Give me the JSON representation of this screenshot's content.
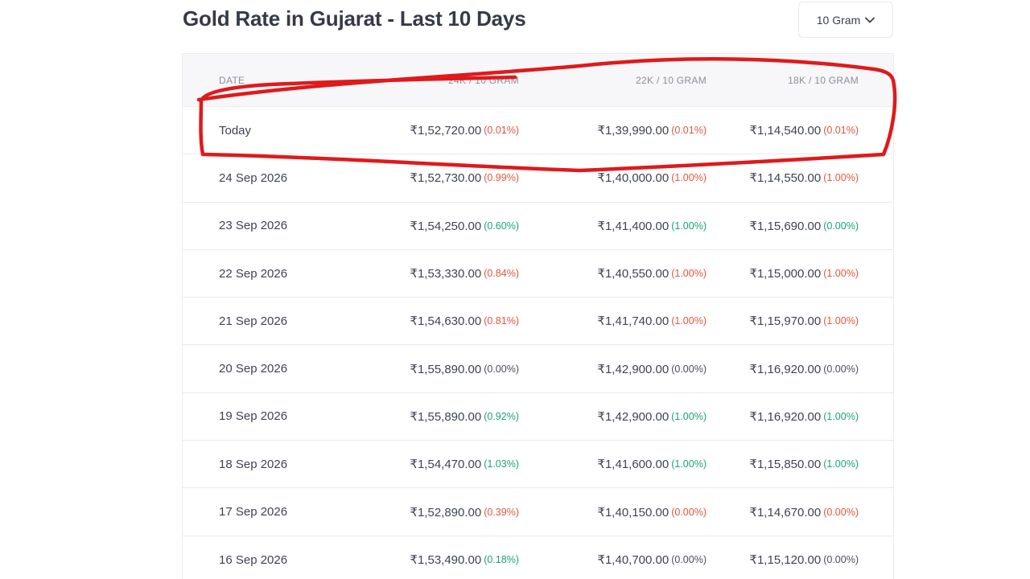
{
  "header": {
    "title": "Gold Rate in Gujarat - Last 10 Days",
    "unit_select": {
      "value": "10 Gram",
      "icon": "chevron-down-icon"
    }
  },
  "table": {
    "columns": [
      "DATE",
      "24K / 10 GRAM",
      "22K / 10 GRAM",
      "18K / 10 GRAM"
    ],
    "rows": [
      {
        "date": "Today",
        "k24": {
          "price": "₹1,52,720.00",
          "pct": "(0.01%)",
          "trend": "down"
        },
        "k22": {
          "price": "₹1,39,990.00",
          "pct": "(0.01%)",
          "trend": "down"
        },
        "k18": {
          "price": "₹1,14,540.00",
          "pct": "(0.01%)",
          "trend": "down"
        }
      },
      {
        "date": "24 Sep 2026",
        "k24": {
          "price": "₹1,52,730.00",
          "pct": "(0.99%)",
          "trend": "down"
        },
        "k22": {
          "price": "₹1,40,000.00",
          "pct": "(1.00%)",
          "trend": "down"
        },
        "k18": {
          "price": "₹1,14,550.00",
          "pct": "(1.00%)",
          "trend": "down"
        }
      },
      {
        "date": "23 Sep 2026",
        "k24": {
          "price": "₹1,54,250.00",
          "pct": "(0.60%)",
          "trend": "up"
        },
        "k22": {
          "price": "₹1,41,400.00",
          "pct": "(1.00%)",
          "trend": "up"
        },
        "k18": {
          "price": "₹1,15,690.00",
          "pct": "(0.00%)",
          "trend": "up"
        }
      },
      {
        "date": "22 Sep 2026",
        "k24": {
          "price": "₹1,53,330.00",
          "pct": "(0.84%)",
          "trend": "down"
        },
        "k22": {
          "price": "₹1,40,550.00",
          "pct": "(1.00%)",
          "trend": "down"
        },
        "k18": {
          "price": "₹1,15,000.00",
          "pct": "(1.00%)",
          "trend": "down"
        }
      },
      {
        "date": "21 Sep 2026",
        "k24": {
          "price": "₹1,54,630.00",
          "pct": "(0.81%)",
          "trend": "down"
        },
        "k22": {
          "price": "₹1,41,740.00",
          "pct": "(1.00%)",
          "trend": "down"
        },
        "k18": {
          "price": "₹1,15,970.00",
          "pct": "(1.00%)",
          "trend": "down"
        }
      },
      {
        "date": "20 Sep 2026",
        "k24": {
          "price": "₹1,55,890.00",
          "pct": "(0.00%)",
          "trend": "flat"
        },
        "k22": {
          "price": "₹1,42,900.00",
          "pct": "(0.00%)",
          "trend": "flat"
        },
        "k18": {
          "price": "₹1,16,920.00",
          "pct": "(0.00%)",
          "trend": "flat"
        }
      },
      {
        "date": "19 Sep 2026",
        "k24": {
          "price": "₹1,55,890.00",
          "pct": "(0.92%)",
          "trend": "up"
        },
        "k22": {
          "price": "₹1,42,900.00",
          "pct": "(1.00%)",
          "trend": "up"
        },
        "k18": {
          "price": "₹1,16,920.00",
          "pct": "(1.00%)",
          "trend": "up"
        }
      },
      {
        "date": "18 Sep 2026",
        "k24": {
          "price": "₹1,54,470.00",
          "pct": "(1.03%)",
          "trend": "up"
        },
        "k22": {
          "price": "₹1,41,600.00",
          "pct": "(1.00%)",
          "trend": "up"
        },
        "k18": {
          "price": "₹1,15,850.00",
          "pct": "(1.00%)",
          "trend": "up"
        }
      },
      {
        "date": "17 Sep 2026",
        "k24": {
          "price": "₹1,52,890.00",
          "pct": "(0.39%)",
          "trend": "down"
        },
        "k22": {
          "price": "₹1,40,150.00",
          "pct": "(0.00%)",
          "trend": "down"
        },
        "k18": {
          "price": "₹1,14,670.00",
          "pct": "(0.00%)",
          "trend": "down"
        }
      },
      {
        "date": "16 Sep 2026",
        "k24": {
          "price": "₹1,53,490.00",
          "pct": "(0.18%)",
          "trend": "up"
        },
        "k22": {
          "price": "₹1,40,700.00",
          "pct": "(0.00%)",
          "trend": "flat"
        },
        "k18": {
          "price": "₹1,15,120.00",
          "pct": "(0.00%)",
          "trend": "flat"
        }
      }
    ]
  },
  "colors": {
    "down": "#e2553f",
    "up": "#1aa27a",
    "flat": "#4a4f5c",
    "annotation": "#e0191b"
  },
  "annotation": {
    "shape": "hand-drawn red outline around header and Today row"
  }
}
